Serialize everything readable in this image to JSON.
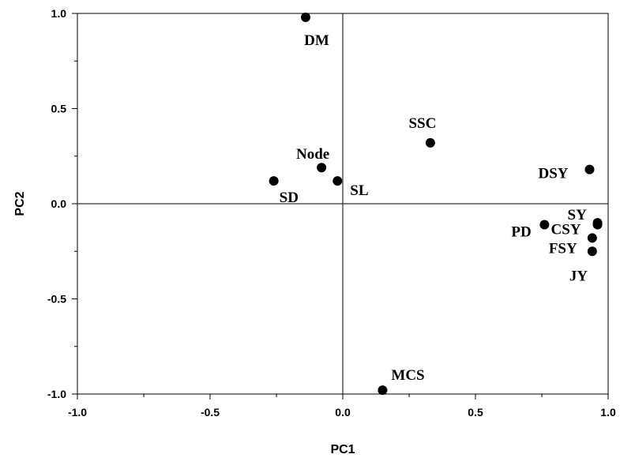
{
  "chart_data": {
    "type": "scatter",
    "title": "",
    "xlabel": "PC1",
    "ylabel": "PC2",
    "xlim": [
      -1.0,
      1.0
    ],
    "ylim": [
      -1.0,
      1.0
    ],
    "x_ticks": [
      "-1.0",
      "-0.5",
      "0.0",
      "0.5",
      "1.0"
    ],
    "y_ticks": [
      "1.0",
      "0.5",
      "0.0",
      "-0.5",
      "-1.0"
    ],
    "reference_lines": {
      "x": 0,
      "y": 0
    },
    "grid": false,
    "points": [
      {
        "label": "DM",
        "x": -0.14,
        "y": 0.98
      },
      {
        "label": "SSC",
        "x": 0.33,
        "y": 0.32
      },
      {
        "label": "DSY",
        "x": 0.93,
        "y": 0.18
      },
      {
        "label": "Node",
        "x": -0.08,
        "y": 0.19
      },
      {
        "label": "SD",
        "x": -0.26,
        "y": 0.12
      },
      {
        "label": "SL",
        "x": -0.02,
        "y": 0.12
      },
      {
        "label": "SY",
        "x": 0.96,
        "y": -0.1
      },
      {
        "label": "PD",
        "x": 0.76,
        "y": -0.11
      },
      {
        "label": "CSY",
        "x": 0.96,
        "y": -0.11
      },
      {
        "label": "FSY",
        "x": 0.94,
        "y": -0.18
      },
      {
        "label": "JY",
        "x": 0.94,
        "y": -0.25
      },
      {
        "label": "MCS",
        "x": 0.15,
        "y": -0.98
      }
    ]
  }
}
